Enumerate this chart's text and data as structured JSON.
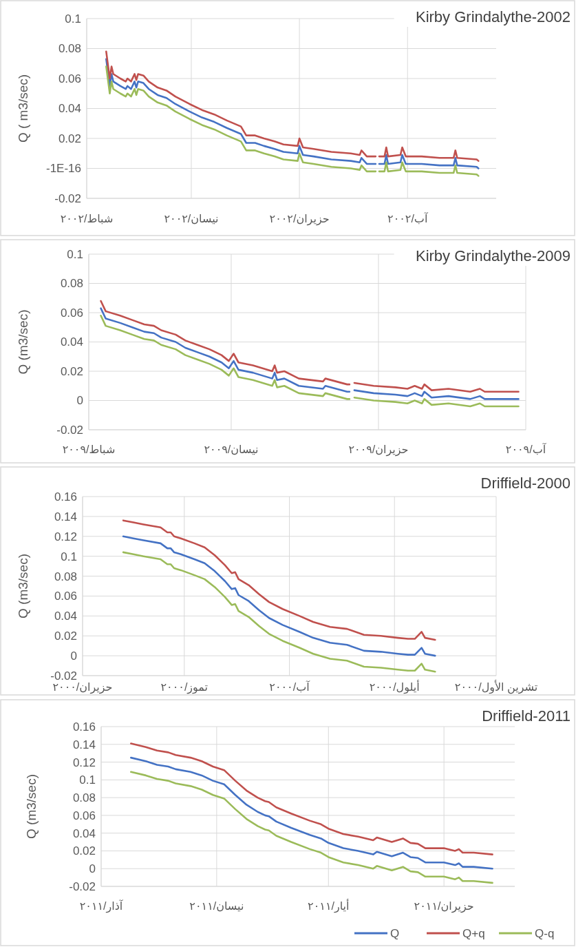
{
  "chart_data": [
    {
      "type": "line",
      "title": "Kirby Grindalythe-2002",
      "ylabel": "Q ( m3/sec)",
      "grid": true,
      "line_style": "solid",
      "marker": "none",
      "xlim": [
        "2002-02-01",
        "2002-09-20"
      ],
      "xticks": [
        {
          "value": "2002-02-01",
          "label": "شباط/٢٠٠٢"
        },
        {
          "value": "2002-04-01",
          "label": "نيسان/٢٠٠٢"
        },
        {
          "value": "2002-06-01",
          "label": "حزيران/٢٠٠٢"
        },
        {
          "value": "2002-08-01",
          "label": "آب/٢٠٠٢"
        }
      ],
      "ylim": [
        -0.02,
        0.1
      ],
      "yticks": [
        -0.02,
        {
          "value": -1e-16,
          "label": "-1E-16"
        },
        0.02,
        0.04,
        0.06,
        0.08,
        0.1
      ],
      "x": [
        "2002-02-12",
        "2002-02-13",
        "2002-02-14",
        "2002-02-15",
        "2002-02-16",
        "2002-02-20",
        "2002-02-23",
        "2002-02-24",
        "2002-02-26",
        "2002-02-28",
        "2002-03-01",
        "2002-03-02",
        "2002-03-05",
        "2002-03-08",
        "2002-03-13",
        "2002-03-18",
        "2002-03-23",
        "2002-03-31",
        "2002-04-07",
        "2002-04-14",
        "2002-04-21",
        "2002-04-29",
        "2002-05-02",
        "2002-05-07",
        "2002-05-12",
        "2002-05-18",
        "2002-05-23",
        "2002-05-31",
        "2002-06-01",
        "2002-06-03",
        "2002-06-09",
        "2002-06-19",
        "2002-06-30",
        "2002-07-05",
        "2002-07-06",
        "2002-07-09",
        "2002-07-14",
        "2002-07-15",
        "2002-07-16",
        "2002-07-19",
        "2002-07-20",
        "2002-07-21",
        "2002-07-28",
        "2002-07-29",
        "2002-07-31",
        "2002-08-09",
        "2002-08-19",
        "2002-08-27",
        "2002-08-28",
        "2002-08-29",
        "2002-09-09",
        "2002-09-10"
      ],
      "series": [
        {
          "color": "#4472c4",
          "values": [
            0.073,
            0.064,
            0.055,
            0.063,
            0.058,
            0.055,
            0.053,
            0.055,
            0.053,
            0.058,
            0.054,
            0.058,
            0.057,
            0.053,
            0.049,
            0.047,
            0.043,
            0.038,
            0.034,
            0.031,
            0.027,
            0.023,
            0.017,
            0.017,
            0.015,
            0.013,
            0.011,
            0.01,
            0.015,
            0.009,
            0.008,
            0.006,
            0.005,
            0.004,
            0.007,
            0.003,
            0.003,
            null,
            0.003,
            0.003,
            0.009,
            0.003,
            0.004,
            0.009,
            0.003,
            0.003,
            0.002,
            0.002,
            0.007,
            0.002,
            0.001,
            0.0
          ]
        },
        {
          "color": "#c0504d",
          "values": [
            0.078,
            0.069,
            0.06,
            0.068,
            0.063,
            0.06,
            0.058,
            0.06,
            0.058,
            0.063,
            0.059,
            0.063,
            0.062,
            0.058,
            0.054,
            0.052,
            0.048,
            0.043,
            0.039,
            0.036,
            0.032,
            0.028,
            0.022,
            0.022,
            0.02,
            0.018,
            0.016,
            0.015,
            0.02,
            0.014,
            0.013,
            0.011,
            0.01,
            0.009,
            0.012,
            0.008,
            0.008,
            null,
            0.008,
            0.008,
            0.014,
            0.008,
            0.009,
            0.014,
            0.008,
            0.008,
            0.007,
            0.007,
            0.012,
            0.007,
            0.006,
            0.005
          ]
        },
        {
          "color": "#9bbb59",
          "values": [
            0.068,
            0.059,
            0.05,
            0.058,
            0.053,
            0.05,
            0.048,
            0.05,
            0.048,
            0.053,
            0.049,
            0.053,
            0.052,
            0.048,
            0.044,
            0.042,
            0.038,
            0.033,
            0.029,
            0.026,
            0.022,
            0.018,
            0.012,
            0.012,
            0.01,
            0.008,
            0.006,
            0.005,
            0.01,
            0.004,
            0.003,
            0.001,
            0.0,
            -0.001,
            0.002,
            -0.002,
            -0.002,
            null,
            -0.002,
            -0.002,
            0.004,
            -0.002,
            -0.001,
            0.004,
            -0.002,
            -0.002,
            -0.003,
            -0.003,
            0.002,
            -0.003,
            -0.004,
            -0.005
          ]
        }
      ]
    },
    {
      "type": "line",
      "title": "Kirby Grindalythe-2009",
      "ylabel": "Q (m3/sec)",
      "grid": true,
      "line_style": "solid",
      "marker": "none",
      "xlim": [
        "2009-02-01",
        "2009-08-01"
      ],
      "xticks": [
        {
          "value": "2009-02-01",
          "label": "شباط/٢٠٠٩"
        },
        {
          "value": "2009-04-01",
          "label": "نيسان/٢٠٠٩"
        },
        {
          "value": "2009-06-01",
          "label": "حزيران/٢٠٠٩"
        },
        {
          "value": "2009-08-01",
          "label": "آب/٢٠٠٩"
        }
      ],
      "ylim": [
        -0.02,
        0.1
      ],
      "yticks": [
        -0.02,
        0,
        0.02,
        0.04,
        0.06,
        0.08,
        0.1
      ],
      "x": [
        "2009-02-06",
        "2009-02-08",
        "2009-02-14",
        "2009-02-19",
        "2009-02-24",
        "2009-02-28",
        "2009-03-03",
        "2009-03-09",
        "2009-03-13",
        "2009-03-18",
        "2009-03-23",
        "2009-03-28",
        "2009-03-31",
        "2009-04-02",
        "2009-04-04",
        "2009-04-10",
        "2009-04-18",
        "2009-04-19",
        "2009-04-20",
        "2009-04-23",
        "2009-04-29",
        "2009-05-09",
        "2009-05-10",
        "2009-05-19",
        "2009-05-20",
        "2009-05-21",
        "2009-05-22",
        "2009-05-30",
        "2009-06-08",
        "2009-06-13",
        "2009-06-16",
        "2009-06-19",
        "2009-06-20",
        "2009-06-23",
        "2009-06-30",
        "2009-07-09",
        "2009-07-13",
        "2009-07-15",
        "2009-07-29"
      ],
      "series": [
        {
          "color": "#4472c4",
          "values": [
            0.063,
            0.056,
            0.053,
            0.05,
            0.047,
            0.046,
            0.043,
            0.04,
            0.036,
            0.033,
            0.03,
            0.026,
            0.022,
            0.027,
            0.021,
            0.019,
            0.015,
            0.019,
            0.014,
            0.015,
            0.01,
            0.008,
            0.01,
            0.006,
            0.006,
            null,
            0.007,
            0.005,
            0.004,
            0.003,
            0.005,
            0.003,
            0.006,
            0.002,
            0.003,
            0.001,
            0.003,
            0.001,
            0.001
          ]
        },
        {
          "color": "#c0504d",
          "values": [
            0.068,
            0.061,
            0.058,
            0.055,
            0.052,
            0.051,
            0.048,
            0.045,
            0.041,
            0.038,
            0.035,
            0.031,
            0.027,
            0.032,
            0.026,
            0.024,
            0.02,
            0.024,
            0.019,
            0.02,
            0.015,
            0.013,
            0.015,
            0.011,
            0.011,
            null,
            0.012,
            0.01,
            0.009,
            0.008,
            0.01,
            0.008,
            0.011,
            0.007,
            0.008,
            0.006,
            0.008,
            0.006,
            0.006
          ]
        },
        {
          "color": "#9bbb59",
          "values": [
            0.058,
            0.051,
            0.048,
            0.045,
            0.042,
            0.041,
            0.038,
            0.035,
            0.031,
            0.028,
            0.025,
            0.021,
            0.017,
            0.022,
            0.016,
            0.014,
            0.01,
            0.014,
            0.009,
            0.01,
            0.005,
            0.003,
            0.005,
            0.001,
            0.001,
            null,
            0.002,
            0.0,
            -0.001,
            -0.002,
            0.0,
            -0.002,
            0.001,
            -0.003,
            -0.002,
            -0.004,
            -0.002,
            -0.004,
            -0.004
          ]
        }
      ]
    },
    {
      "type": "line",
      "title": "Driffield-2000",
      "ylabel": "Q (m3/sec)",
      "grid": true,
      "line_style": "solid",
      "marker": "none",
      "xlim": [
        "2000-06-01",
        "2000-10-01"
      ],
      "xticks": [
        {
          "value": "2000-06-01",
          "label": "حزيران/٢٠٠٠"
        },
        {
          "value": "2000-07-01",
          "label": "تموز/٢٠٠٠"
        },
        {
          "value": "2000-08-01",
          "label": "آب/٢٠٠٠"
        },
        {
          "value": "2000-09-01",
          "label": "أيلول/٢٠٠٠"
        },
        {
          "value": "2000-10-01",
          "label": "تشرين الأول/٢٠٠٠"
        }
      ],
      "ylim": [
        -0.02,
        0.16
      ],
      "yticks": [
        -0.02,
        0,
        0.02,
        0.04,
        0.06,
        0.08,
        0.1,
        0.12,
        0.14,
        0.16
      ],
      "x": [
        "2000-06-13",
        "2000-06-16",
        "2000-06-19",
        "2000-06-24",
        "2000-06-26",
        "2000-06-27",
        "2000-06-28",
        "2000-06-30",
        "2000-07-04",
        "2000-07-07",
        "2000-07-10",
        "2000-07-13",
        "2000-07-15",
        "2000-07-16",
        "2000-07-17",
        "2000-07-20",
        "2000-07-23",
        "2000-07-26",
        "2000-07-30",
        "2000-08-04",
        "2000-08-08",
        "2000-08-13",
        "2000-08-18",
        "2000-08-23",
        "2000-08-28",
        "2000-09-02",
        "2000-09-05",
        "2000-09-07",
        "2000-09-09",
        "2000-09-10",
        "2000-09-13"
      ],
      "series": [
        {
          "color": "#4472c4",
          "values": [
            0.12,
            0.118,
            0.116,
            0.113,
            0.108,
            0.108,
            0.104,
            0.102,
            0.097,
            0.093,
            0.085,
            0.075,
            0.067,
            0.068,
            0.061,
            0.055,
            0.046,
            0.038,
            0.031,
            0.024,
            0.018,
            0.013,
            0.011,
            0.005,
            0.004,
            0.002,
            0.001,
            0.001,
            0.008,
            0.002,
            0.0
          ]
        },
        {
          "color": "#c0504d",
          "values": [
            0.136,
            0.134,
            0.132,
            0.129,
            0.124,
            0.124,
            0.12,
            0.118,
            0.113,
            0.109,
            0.101,
            0.091,
            0.083,
            0.084,
            0.077,
            0.071,
            0.062,
            0.054,
            0.047,
            0.04,
            0.034,
            0.029,
            0.027,
            0.021,
            0.02,
            0.018,
            0.017,
            0.017,
            0.024,
            0.018,
            0.016
          ]
        },
        {
          "color": "#9bbb59",
          "values": [
            0.104,
            0.102,
            0.1,
            0.097,
            0.092,
            0.092,
            0.088,
            0.086,
            0.081,
            0.077,
            0.069,
            0.059,
            0.051,
            0.052,
            0.045,
            0.039,
            0.03,
            0.022,
            0.015,
            0.008,
            0.002,
            -0.003,
            -0.005,
            -0.011,
            -0.012,
            -0.014,
            -0.015,
            -0.015,
            -0.008,
            -0.014,
            -0.016
          ]
        }
      ]
    },
    {
      "type": "line",
      "title": "Driffield-2011",
      "ylabel": "Q (m3/sec)",
      "grid": true,
      "line_style": "solid",
      "marker": "none",
      "legend": "bottom right",
      "xlim": [
        "2011-03-01",
        "2011-06-20"
      ],
      "xticks": [
        {
          "value": "2011-03-01",
          "label": "آذار/٢٠١١"
        },
        {
          "value": "2011-04-01",
          "label": "نيسان/٢٠١١"
        },
        {
          "value": "2011-05-01",
          "label": "أيار/٢٠١١"
        },
        {
          "value": "2011-06-01",
          "label": "حزيران/٢٠١١"
        }
      ],
      "ylim": [
        -0.02,
        0.16
      ],
      "yticks": [
        -0.02,
        0,
        0.02,
        0.04,
        0.06,
        0.08,
        0.1,
        0.12,
        0.14,
        0.16
      ],
      "x": [
        "2011-03-09",
        "2011-03-13",
        "2011-03-16",
        "2011-03-19",
        "2011-03-21",
        "2011-03-25",
        "2011-03-28",
        "2011-03-31",
        "2011-04-03",
        "2011-04-06",
        "2011-04-09",
        "2011-04-12",
        "2011-04-14",
        "2011-04-15",
        "2011-04-17",
        "2011-04-21",
        "2011-04-26",
        "2011-04-29",
        "2011-05-01",
        "2011-05-05",
        "2011-05-09",
        "2011-05-13",
        "2011-05-14",
        "2011-05-18",
        "2011-05-21",
        "2011-05-23",
        "2011-05-25",
        "2011-05-27",
        "2011-06-01",
        "2011-06-04",
        "2011-06-05",
        "2011-06-06",
        "2011-06-09",
        "2011-06-14"
      ],
      "series": [
        {
          "name": "Q",
          "color": "#4472c4",
          "values": [
            0.125,
            0.121,
            0.117,
            0.115,
            0.112,
            0.109,
            0.105,
            0.099,
            0.095,
            0.083,
            0.072,
            0.064,
            0.06,
            0.059,
            0.053,
            0.046,
            0.038,
            0.034,
            0.029,
            0.023,
            0.02,
            0.016,
            0.019,
            0.014,
            0.018,
            0.013,
            0.012,
            0.007,
            0.007,
            0.004,
            0.006,
            0.002,
            0.002,
            0.0
          ]
        },
        {
          "name": "Q+q",
          "color": "#c0504d",
          "values": [
            0.141,
            0.137,
            0.133,
            0.131,
            0.128,
            0.125,
            0.121,
            0.115,
            0.111,
            0.099,
            0.088,
            0.08,
            0.076,
            0.075,
            0.069,
            0.062,
            0.054,
            0.05,
            0.045,
            0.039,
            0.036,
            0.032,
            0.035,
            0.03,
            0.034,
            0.029,
            0.028,
            0.023,
            0.023,
            0.02,
            0.022,
            0.018,
            0.018,
            0.016
          ]
        },
        {
          "name": "Q-q",
          "color": "#9bbb59",
          "values": [
            0.109,
            0.105,
            0.101,
            0.099,
            0.096,
            0.093,
            0.089,
            0.083,
            0.079,
            0.067,
            0.056,
            0.048,
            0.044,
            0.043,
            0.037,
            0.03,
            0.022,
            0.018,
            0.013,
            0.007,
            0.004,
            0.0,
            0.003,
            -0.002,
            0.002,
            -0.003,
            -0.004,
            -0.009,
            -0.009,
            -0.012,
            -0.01,
            -0.014,
            -0.014,
            -0.016
          ]
        }
      ]
    }
  ]
}
